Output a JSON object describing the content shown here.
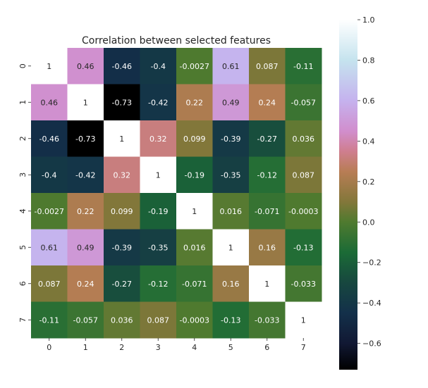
{
  "chart_data": {
    "type": "heatmap",
    "title": "Correlation between selected features",
    "xlabel": "",
    "ylabel": "",
    "x_labels": [
      "0",
      "1",
      "2",
      "3",
      "4",
      "5",
      "6",
      "7"
    ],
    "y_labels": [
      "0",
      "1",
      "2",
      "3",
      "4",
      "5",
      "6",
      "7"
    ],
    "values": [
      [
        1,
        0.46,
        -0.46,
        -0.4,
        -0.0027,
        0.61,
        0.087,
        -0.11
      ],
      [
        0.46,
        1,
        -0.73,
        -0.42,
        0.22,
        0.49,
        0.24,
        -0.057
      ],
      [
        -0.46,
        -0.73,
        1,
        0.32,
        0.099,
        -0.39,
        -0.27,
        0.036
      ],
      [
        -0.4,
        -0.42,
        0.32,
        1,
        -0.19,
        -0.35,
        -0.12,
        0.087
      ],
      [
        -0.0027,
        0.22,
        0.099,
        -0.19,
        1,
        0.016,
        -0.071,
        -0.0003
      ],
      [
        0.61,
        0.49,
        -0.39,
        -0.35,
        0.016,
        1,
        0.16,
        -0.13
      ],
      [
        0.087,
        0.24,
        -0.27,
        -0.12,
        -0.071,
        0.16,
        1,
        -0.033
      ],
      [
        -0.11,
        -0.057,
        0.036,
        0.087,
        -0.0003,
        -0.13,
        -0.033,
        1
      ]
    ],
    "cell_labels": [
      [
        "1",
        "0.46",
        "-0.46",
        "-0.4",
        "-0.0027",
        "0.61",
        "0.087",
        "-0.11"
      ],
      [
        "0.46",
        "1",
        "-0.73",
        "-0.42",
        "0.22",
        "0.49",
        "0.24",
        "-0.057"
      ],
      [
        "-0.46",
        "-0.73",
        "1",
        "0.32",
        "0.099",
        "-0.39",
        "-0.27",
        "0.036"
      ],
      [
        "-0.4",
        "-0.42",
        "0.32",
        "1",
        "-0.19",
        "-0.35",
        "-0.12",
        "0.087"
      ],
      [
        "-0.0027",
        "0.22",
        "0.099",
        "-0.19",
        "1",
        "0.016",
        "-0.071",
        "-0.0003"
      ],
      [
        "0.61",
        "0.49",
        "-0.39",
        "-0.35",
        "0.016",
        "1",
        "0.16",
        "-0.13"
      ],
      [
        "0.087",
        "0.24",
        "-0.27",
        "-0.12",
        "-0.071",
        "0.16",
        "1",
        "-0.033"
      ],
      [
        "-0.11",
        "-0.057",
        "0.036",
        "0.087",
        "-0.0003",
        "-0.13",
        "-0.033",
        "1"
      ]
    ],
    "show_upper_triangle_of_last_row_diagonal": true,
    "colormap": "cubehelix",
    "colorbar": {
      "range": [
        -0.73,
        1.0
      ],
      "ticks": [
        1.0,
        0.8,
        0.6,
        0.4,
        0.2,
        0.0,
        -0.2,
        -0.4,
        -0.6
      ],
      "tick_labels": [
        "1.0",
        "0.8",
        "0.6",
        "0.4",
        "0.2",
        "0.0",
        "−0.2",
        "−0.4",
        "−0.6"
      ],
      "placement": "right"
    },
    "colormap_stops": [
      {
        "v": -0.73,
        "color": "#000000"
      },
      {
        "v": -0.6,
        "color": "#111833"
      },
      {
        "v": -0.45,
        "color": "#13304a"
      },
      {
        "v": -0.3,
        "color": "#17473f"
      },
      {
        "v": -0.15,
        "color": "#1b6b36"
      },
      {
        "v": 0.0,
        "color": "#4f7a2f"
      },
      {
        "v": 0.1,
        "color": "#83773a"
      },
      {
        "v": 0.25,
        "color": "#b87d55"
      },
      {
        "v": 0.35,
        "color": "#cf7e8f"
      },
      {
        "v": 0.45,
        "color": "#d18ecd"
      },
      {
        "v": 0.6,
        "color": "#c5b2ee"
      },
      {
        "v": 0.8,
        "color": "#c5e3ee"
      },
      {
        "v": 1.0,
        "color": "#ffffff"
      }
    ],
    "grid": false
  }
}
